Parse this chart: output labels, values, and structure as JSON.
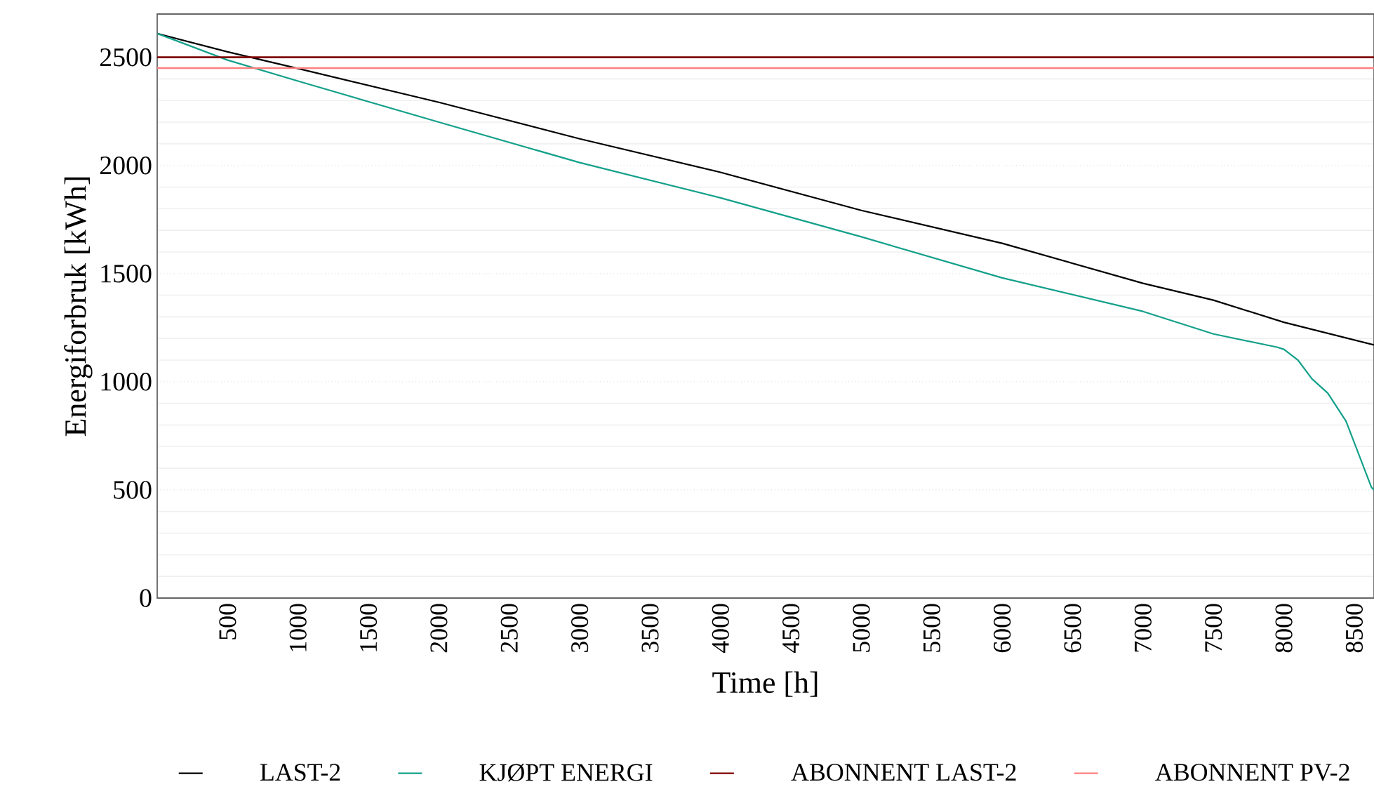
{
  "chart_data": {
    "type": "line",
    "xlabel": "Time [h]",
    "ylabel": "Energiforbruk [kWh]",
    "xlim": [
      0,
      8640
    ],
    "xticks": [
      500,
      1000,
      1500,
      2000,
      2500,
      3000,
      3500,
      4000,
      4500,
      5000,
      5500,
      6000,
      6500,
      7000,
      7500,
      8000,
      8500
    ],
    "ylim": [
      0,
      2700
    ],
    "yticks": [
      0,
      500,
      1000,
      1500,
      2000,
      2500
    ],
    "grid": "y",
    "legend": "bottom",
    "line_style": "solid",
    "marker": "none",
    "series": [
      {
        "name": "LAST-2",
        "color": "#000000",
        "x": [
          0,
          500,
          1000,
          2000,
          3000,
          4000,
          5000,
          6000,
          7000,
          7500,
          8000,
          8640
        ],
        "values": [
          2610,
          2525,
          2448,
          2292,
          2123,
          1968,
          1792,
          1640,
          1455,
          1377,
          1275,
          1170
        ]
      },
      {
        "name": "KJØPT ENERGI",
        "color": "#13a08a",
        "x": [
          0,
          500,
          1000,
          2000,
          3000,
          4000,
          5000,
          6000,
          7000,
          7500,
          7950,
          8000,
          8100,
          8200,
          8311,
          8441,
          8621,
          8640
        ],
        "values": [
          2610,
          2487,
          2390,
          2200,
          2013,
          1850,
          1670,
          1480,
          1325,
          1221,
          1160,
          1150,
          1100,
          1013,
          948,
          818,
          513,
          500
        ]
      }
    ],
    "ref_lines": [
      {
        "axis": "y",
        "value": 2500,
        "label": "ABONNENT LAST-2",
        "color": "#7f0000"
      },
      {
        "axis": "y",
        "value": 2450,
        "label": "ABONNENT PV-2",
        "color": "#ff7f7f"
      }
    ]
  }
}
